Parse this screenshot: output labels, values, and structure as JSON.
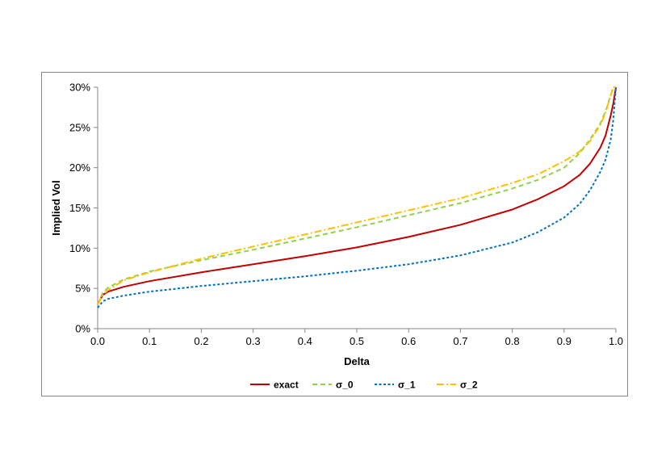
{
  "chart_data": {
    "type": "line",
    "title": "",
    "xlabel": "Delta",
    "ylabel": "Implied Vol",
    "xlim": [
      0.0,
      1.0
    ],
    "ylim": [
      0,
      30
    ],
    "x_ticks": [
      "0.0",
      "0.1",
      "0.2",
      "0.3",
      "0.4",
      "0.5",
      "0.6",
      "0.7",
      "0.8",
      "0.9",
      "1.0"
    ],
    "y_ticks": [
      "0%",
      "5%",
      "10%",
      "15%",
      "20%",
      "25%",
      "30%"
    ],
    "grid": false,
    "legend_position": "bottom",
    "x": [
      0.0,
      0.01,
      0.02,
      0.05,
      0.1,
      0.2,
      0.3,
      0.4,
      0.5,
      0.6,
      0.7,
      0.8,
      0.85,
      0.9,
      0.93,
      0.95,
      0.97,
      0.98,
      0.99,
      0.995,
      1.0
    ],
    "series": [
      {
        "name": "exact",
        "color": "#c00000",
        "dash": "solid",
        "values": [
          3.0,
          4.2,
          4.6,
          5.2,
          5.9,
          7.0,
          8.0,
          9.0,
          10.1,
          11.4,
          12.9,
          14.8,
          16.1,
          17.7,
          19.1,
          20.5,
          22.5,
          24.0,
          26.5,
          28.0,
          30.0
        ]
      },
      {
        "name": "σ_0",
        "color": "#92d050",
        "dash": "dash",
        "values": [
          3.0,
          4.5,
          5.1,
          6.1,
          7.1,
          8.5,
          9.8,
          11.2,
          12.6,
          14.1,
          15.6,
          17.4,
          18.5,
          20.0,
          21.8,
          23.5,
          25.5,
          27.0,
          29.0,
          30.0,
          30.0
        ]
      },
      {
        "name": "σ_1",
        "color": "#0070c0",
        "dash": "dot",
        "values": [
          2.6,
          3.4,
          3.7,
          4.1,
          4.6,
          5.3,
          5.9,
          6.5,
          7.2,
          8.0,
          9.1,
          10.7,
          12.0,
          13.8,
          15.5,
          17.2,
          19.5,
          21.0,
          23.5,
          26.0,
          30.0
        ]
      },
      {
        "name": "σ_2",
        "color": "#ffc000",
        "dash": "dashdot",
        "values": [
          3.0,
          4.2,
          4.8,
          6.0,
          7.0,
          8.7,
          10.2,
          11.7,
          13.2,
          14.7,
          16.2,
          18.1,
          19.2,
          20.8,
          22.0,
          23.3,
          25.3,
          26.8,
          29.0,
          30.0,
          30.0
        ]
      }
    ]
  }
}
